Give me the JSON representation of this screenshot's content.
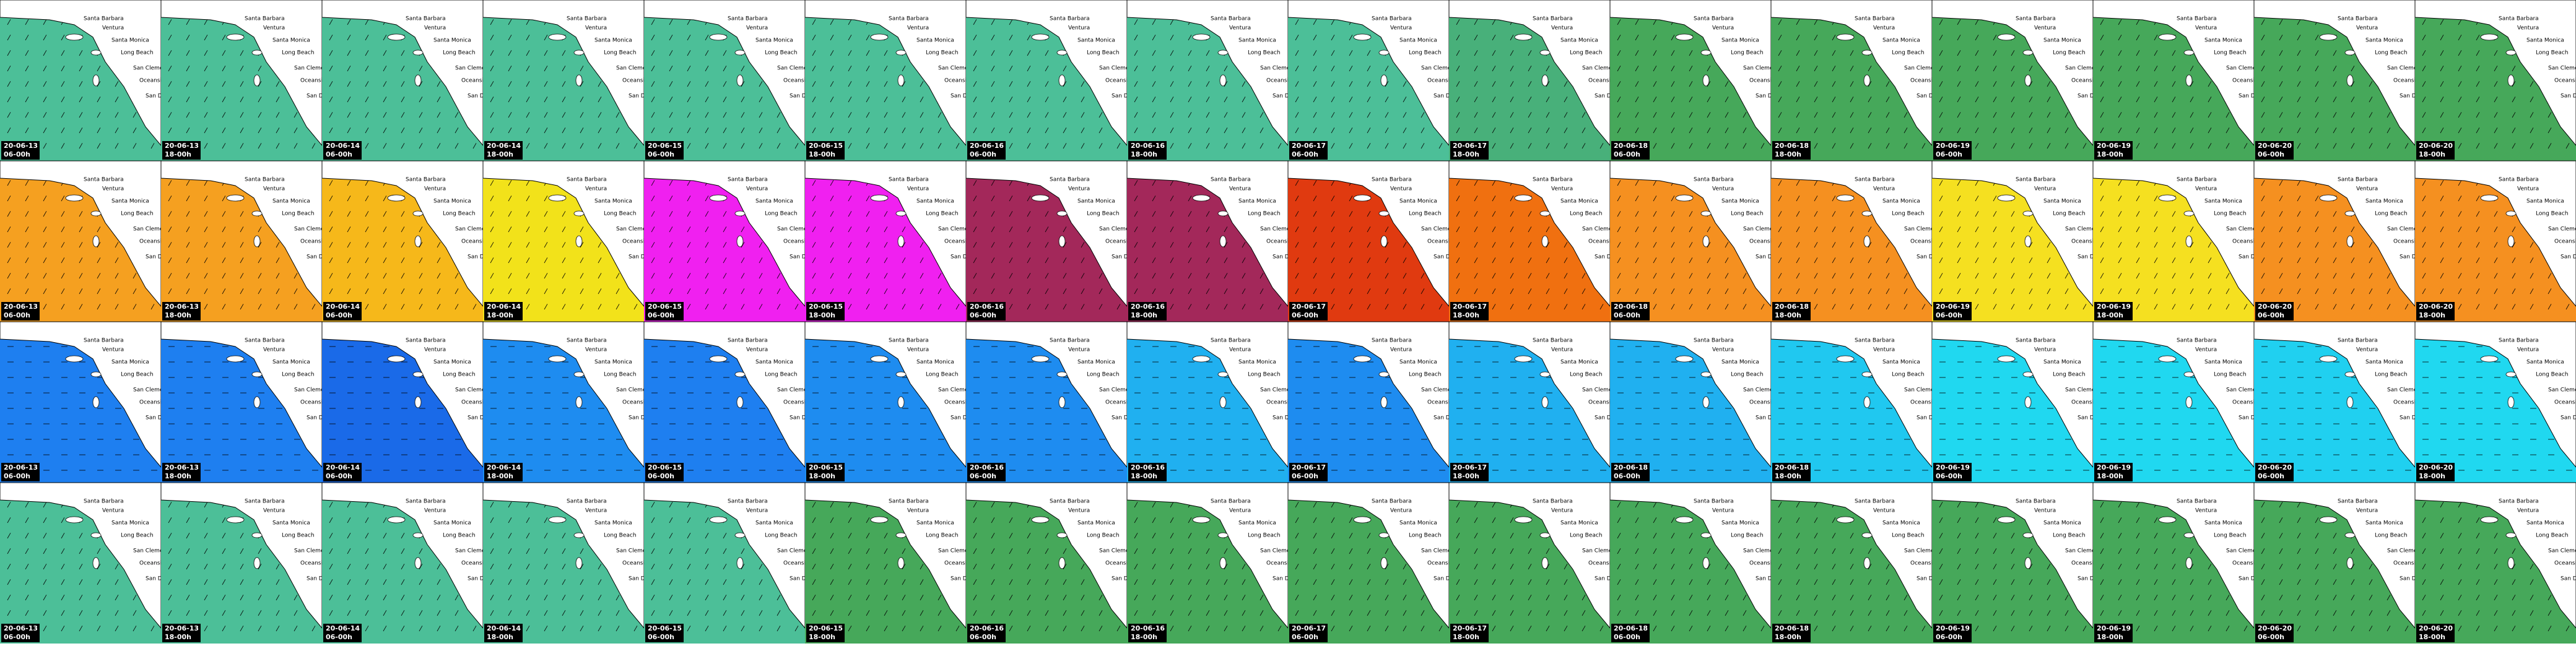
{
  "place_labels": [
    "Santa Barbara",
    "Ventura",
    "Santa Monica",
    "Long Beach",
    "San Clemente",
    "Oceanside",
    "San Diego"
  ],
  "columns": [
    {
      "date": "20-06-13",
      "time": "06-00h"
    },
    {
      "date": "20-06-13",
      "time": "18-00h"
    },
    {
      "date": "20-06-14",
      "time": "06-00h"
    },
    {
      "date": "20-06-14",
      "time": "18-00h"
    },
    {
      "date": "20-06-15",
      "time": "06-00h"
    },
    {
      "date": "20-06-15",
      "time": "18-00h"
    },
    {
      "date": "20-06-16",
      "time": "06-00h"
    },
    {
      "date": "20-06-16",
      "time": "18-00h"
    },
    {
      "date": "20-06-17",
      "time": "06-00h"
    },
    {
      "date": "20-06-17",
      "time": "18-00h"
    },
    {
      "date": "20-06-18",
      "time": "06-00h"
    },
    {
      "date": "20-06-18",
      "time": "18-00h"
    },
    {
      "date": "20-06-19",
      "time": "06-00h"
    },
    {
      "date": "20-06-19",
      "time": "18-00h"
    },
    {
      "date": "20-06-20",
      "time": "06-00h"
    },
    {
      "date": "20-06-20",
      "time": "18-00h"
    }
  ],
  "rows": [
    {
      "colors": [
        "#4cbf98",
        "#4cbf98",
        "#4cbf98",
        "#4cbf98",
        "#4cbf98",
        "#4cbf98",
        "#4cbf98",
        "#4cbf98",
        "#4cbf98",
        "#48b07a",
        "#46a85a",
        "#46a85a",
        "#46a85a",
        "#46a85a",
        "#46a85a",
        "#46a85a"
      ]
    },
    {
      "colors": [
        "#f5a020",
        "#f5a020",
        "#f6b81a",
        "#f2e21a",
        "#f020f0",
        "#f020f0",
        "#a3285a",
        "#a3285a",
        "#e03a10",
        "#f07010",
        "#f59020",
        "#f59020",
        "#f5e020",
        "#f5e020",
        "#f59020",
        "#f59020"
      ]
    },
    {
      "colors": [
        "#1e7ff0",
        "#1e7ff0",
        "#1a6ae8",
        "#1e8cf0",
        "#1e7ff0",
        "#1e8cf0",
        "#1e8cf0",
        "#20b0f0",
        "#1e8cf0",
        "#20b0f0",
        "#20b0f0",
        "#20c8f0",
        "#20d8f0",
        "#20d8f0",
        "#20d0f0",
        "#20d8f0"
      ]
    },
    {
      "colors": [
        "#4cbf98",
        "#4cbf98",
        "#4cbf98",
        "#4cbf98",
        "#4cbf98",
        "#46a85a",
        "#46a85a",
        "#46a85a",
        "#46a85a",
        "#46a85a",
        "#46a85a",
        "#46a85a",
        "#46a85a",
        "#46a85a",
        "#46a85a",
        "#46a85a"
      ]
    }
  ]
}
